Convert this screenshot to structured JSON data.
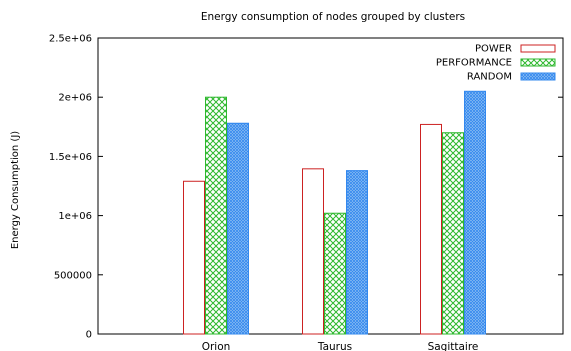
{
  "chart_data": {
    "type": "bar",
    "title": "Energy consumption of nodes grouped by clusters",
    "xlabel": "",
    "ylabel": "Energy Consumption (J)",
    "ylim": [
      0,
      2500000
    ],
    "yticks": [
      0,
      500000,
      1000000,
      1500000,
      2000000,
      2500000
    ],
    "ytick_labels": [
      "0",
      "500000",
      "1e+06",
      "1.5e+06",
      "2e+06",
      "2.5e+06"
    ],
    "categories": [
      "Orion",
      "Taurus",
      "Sagittaire"
    ],
    "series": [
      {
        "name": "POWER",
        "values": [
          1290000,
          1395000,
          1770000
        ],
        "color": "#cc2222",
        "pattern": "none"
      },
      {
        "name": "PERFORMANCE",
        "values": [
          2000000,
          1020000,
          1700000
        ],
        "color": "#2eb82e",
        "pattern": "crosshatch"
      },
      {
        "name": "RANDOM",
        "values": [
          1780000,
          1380000,
          2050000
        ],
        "color": "#3388ee",
        "pattern": "dense"
      }
    ],
    "grid": false,
    "legend_position": "top-right"
  }
}
